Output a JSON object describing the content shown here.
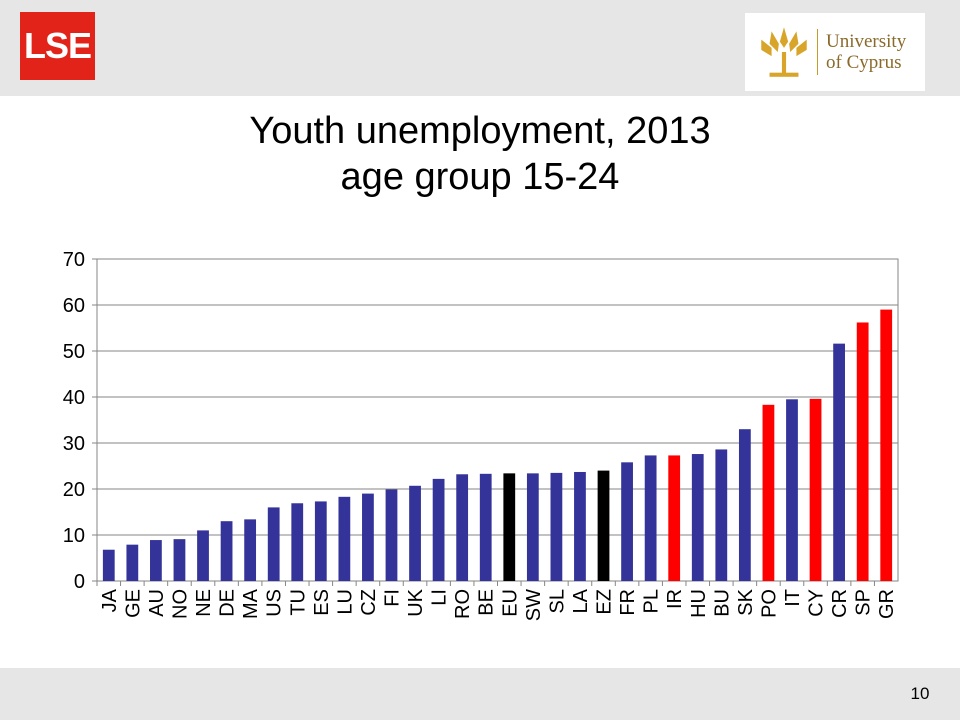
{
  "logos": {
    "lse": "LSE",
    "ucy_line1": "University",
    "ucy_line2": "of Cyprus"
  },
  "page_number": "10",
  "colors": {
    "blue": "#333399",
    "red": "#ff0000",
    "black": "#000000"
  },
  "chart_data": {
    "type": "bar",
    "title": "Youth unemployment, 2013 age group 15-24",
    "title_line1": "Youth unemployment, 2013",
    "title_line2": "age group 15-24",
    "xlabel": "",
    "ylabel": "",
    "ylim": [
      0,
      70
    ],
    "yticks": [
      "0",
      "10",
      "20",
      "30",
      "40",
      "50",
      "60",
      "70"
    ],
    "grid": true,
    "legend": "none",
    "categories": [
      "JA",
      "GE",
      "AU",
      "NO",
      "NE",
      "DE",
      "MA",
      "US",
      "TU",
      "ES",
      "LU",
      "CZ",
      "FI",
      "UK",
      "LI",
      "RO",
      "BE",
      "EU",
      "SW",
      "SL",
      "LA",
      "EZ",
      "FR",
      "PL",
      "IR",
      "HU",
      "BU",
      "SK",
      "PO",
      "IT",
      "CY",
      "CR",
      "SP",
      "GR"
    ],
    "values": [
      6.8,
      7.9,
      8.9,
      9.1,
      11.0,
      13.0,
      13.4,
      16.0,
      16.9,
      17.3,
      18.3,
      19.0,
      19.9,
      20.7,
      22.2,
      23.2,
      23.3,
      23.4,
      23.4,
      23.5,
      23.7,
      24.0,
      25.8,
      27.3,
      27.3,
      27.6,
      28.6,
      33.0,
      38.3,
      39.5,
      39.6,
      51.6,
      56.2,
      59.0
    ],
    "bar_colors": [
      "blue",
      "blue",
      "blue",
      "blue",
      "blue",
      "blue",
      "blue",
      "blue",
      "blue",
      "blue",
      "blue",
      "blue",
      "blue",
      "blue",
      "blue",
      "blue",
      "blue",
      "black",
      "blue",
      "blue",
      "blue",
      "black",
      "blue",
      "blue",
      "red",
      "blue",
      "blue",
      "blue",
      "red",
      "blue",
      "red",
      "blue",
      "red",
      "red"
    ]
  }
}
